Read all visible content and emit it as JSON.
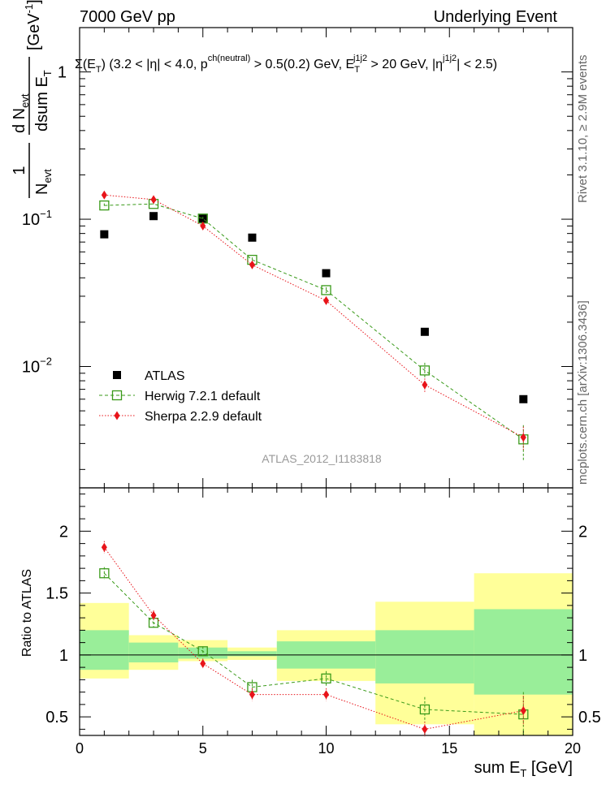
{
  "header": {
    "left": "7000 GeV pp",
    "right": "Underlying Event"
  },
  "side_labels": {
    "rivet": "Rivet 3.1.10, ≥ 2.9M events",
    "site": "mcplots.cern.ch [arXiv:1306.3436]"
  },
  "watermark": "ATLAS_2012_I1183818",
  "selection": {
    "sigma": "Σ(E",
    "T": "T",
    "range": ") (3.2 < |η| < 4.0, p",
    "ch_sup": "ch(neutral)",
    "cut": " > 0.5(0.2) GeV, E",
    "T2": "T",
    "j1j2_sup": "j1j2",
    "cut2": " > 20 GeV, |η",
    "j1j2_sup2": "j1j2",
    "end": "| < 2.5)"
  },
  "colors": {
    "atlas": "#000000",
    "herwig": "#3a9a1a",
    "sherpa": "#e8141a",
    "band_green": "#99ee99",
    "band_yellow": "#ffff99"
  },
  "chart_data": [
    {
      "type": "scatter",
      "name": "main",
      "yscale": "log",
      "xlim": [
        0,
        20
      ],
      "ylim": [
        0.0015,
        2.0
      ],
      "ylabel": {
        "frac_num": "1",
        "frac_den_N": "N",
        "frac_den_sub": "evt",
        "dN": "d N",
        "dN_sub": "evt",
        "dsum": "dsum E",
        "dsum_sub": "T",
        "unit": "[GeV",
        "unit_sup": "-1",
        "unit_end": "]"
      },
      "yticks": [
        {
          "value": 1,
          "label": "1"
        },
        {
          "value": 0.1,
          "label": "10",
          "sup": "−1"
        },
        {
          "value": 0.01,
          "label": "10",
          "sup": "−2"
        }
      ],
      "legend_position": "middle-left",
      "series": [
        {
          "name": "ATLAS",
          "marker": "square-filled",
          "x": [
            1,
            3,
            5,
            7,
            10,
            14,
            18
          ],
          "y": [
            0.079,
            0.105,
            0.101,
            0.075,
            0.043,
            0.0172,
            0.006
          ]
        },
        {
          "name": "Herwig 7.2.1 default",
          "marker": "square-open",
          "line": "dashed",
          "x": [
            1,
            3,
            5,
            7,
            10,
            14,
            18
          ],
          "y": [
            0.124,
            0.127,
            0.101,
            0.053,
            0.033,
            0.0094,
            0.0032
          ],
          "err_up": [
            0.004,
            0.004,
            0.003,
            0.002,
            0.0015,
            0.0012,
            0.0008
          ],
          "err_down": [
            0.004,
            0.004,
            0.003,
            0.002,
            0.0015,
            0.0012,
            0.0009
          ]
        },
        {
          "name": "Sherpa 2.2.9 default",
          "marker": "diamond-filled",
          "line": "dotted",
          "x": [
            1,
            3,
            5,
            7,
            10,
            14,
            18
          ],
          "y": [
            0.146,
            0.136,
            0.09,
            0.049,
            0.028,
            0.0075,
            0.0033
          ],
          "err_up": [
            0.004,
            0.004,
            0.003,
            0.002,
            0.0015,
            0.0008,
            0.0006
          ],
          "err_down": [
            0.004,
            0.004,
            0.003,
            0.002,
            0.0015,
            0.0008,
            0.0006
          ]
        }
      ]
    },
    {
      "type": "scatter",
      "name": "ratio",
      "xlim": [
        0,
        20
      ],
      "ylim": [
        0.35,
        2.35
      ],
      "ylabel": "Ratio to ATLAS",
      "xlabel": "sum E",
      "xlabel_sub": "T",
      "xlabel_unit": " [GeV]",
      "xticks": [
        0,
        5,
        10,
        15,
        20
      ],
      "yticks_left": [
        {
          "value": 0.5,
          "label": "0.5"
        },
        {
          "value": 1,
          "label": "1"
        },
        {
          "value": 1.5,
          "label": "1.5"
        },
        {
          "value": 2,
          "label": "2"
        }
      ],
      "yticks_right": [
        {
          "value": 0.5,
          "label": "0.5"
        },
        {
          "value": 1,
          "label": "1"
        },
        {
          "value": 2,
          "label": "2"
        }
      ],
      "bands": [
        {
          "x0": 0,
          "x1": 2,
          "green": [
            0.88,
            1.2
          ],
          "yellow": [
            0.81,
            1.42
          ]
        },
        {
          "x0": 2,
          "x1": 4,
          "green": [
            0.94,
            1.1
          ],
          "yellow": [
            0.88,
            1.16
          ]
        },
        {
          "x0": 4,
          "x1": 6,
          "green": [
            0.97,
            1.06
          ],
          "yellow": [
            0.95,
            1.12
          ]
        },
        {
          "x0": 6,
          "x1": 8,
          "green": [
            0.99,
            1.03
          ],
          "yellow": [
            0.96,
            1.06
          ]
        },
        {
          "x0": 8,
          "x1": 12,
          "green": [
            0.89,
            1.11
          ],
          "yellow": [
            0.79,
            1.2
          ]
        },
        {
          "x0": 12,
          "x1": 16,
          "green": [
            0.77,
            1.2
          ],
          "yellow": [
            0.44,
            1.43
          ]
        },
        {
          "x0": 16,
          "x1": 20,
          "green": [
            0.68,
            1.37
          ],
          "yellow": [
            0.35,
            1.66
          ]
        }
      ],
      "series": [
        {
          "name": "Herwig 7.2.1 default",
          "marker": "square-open",
          "line": "dashed",
          "x": [
            1,
            3,
            5,
            7,
            10,
            14,
            18
          ],
          "y": [
            1.66,
            1.26,
            1.03,
            0.74,
            0.81,
            0.56,
            0.52
          ],
          "err_up": [
            0.05,
            0.04,
            0.04,
            0.06,
            0.06,
            0.1,
            0.18
          ],
          "err_down": [
            0.05,
            0.04,
            0.04,
            0.05,
            0.06,
            0.1,
            0.16
          ]
        },
        {
          "name": "Sherpa 2.2.9 default",
          "marker": "diamond-filled",
          "line": "dotted",
          "x": [
            1,
            3,
            5,
            7,
            10,
            14,
            18
          ],
          "y": [
            1.87,
            1.32,
            0.93,
            0.68,
            0.68,
            0.4,
            0.55
          ],
          "err_up": [
            0.05,
            0.04,
            0.04,
            0.05,
            0.05,
            0.06,
            0.12
          ],
          "err_down": [
            0.05,
            0.04,
            0.04,
            0.05,
            0.05,
            0.06,
            0.12
          ]
        }
      ]
    }
  ]
}
